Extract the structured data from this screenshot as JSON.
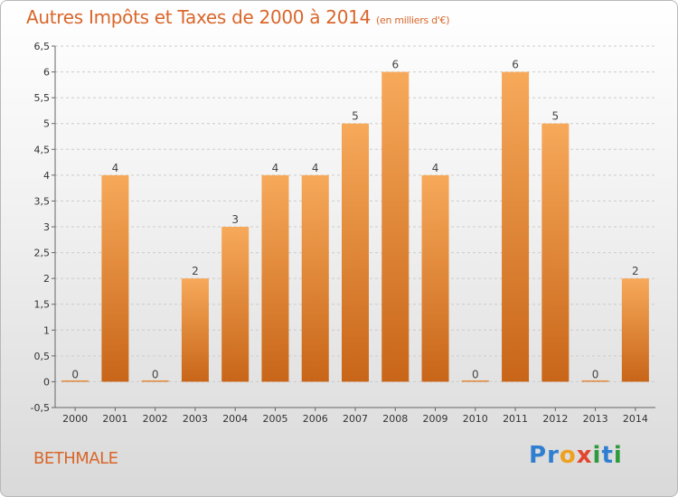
{
  "header": {
    "title": "Autres Impôts et Taxes de 2000 à 2014",
    "unit": "(en milliers d'€)"
  },
  "footer": {
    "commune": "BETHMALE",
    "logo_text": "Proxiti"
  },
  "colors": {
    "accent": "#d9662a",
    "bar_top": "#f7a95a",
    "bar_bottom": "#c86518",
    "grid": "#cccccc"
  },
  "chart_data": {
    "type": "bar",
    "categories": [
      "2000",
      "2001",
      "2002",
      "2003",
      "2004",
      "2005",
      "2006",
      "2007",
      "2008",
      "2009",
      "2010",
      "2011",
      "2012",
      "2013",
      "2014"
    ],
    "values": [
      0,
      4,
      0,
      2,
      3,
      4,
      4,
      5,
      6,
      4,
      0,
      6,
      5,
      0,
      2
    ],
    "value_labels": [
      "0",
      "4",
      "0",
      "2",
      "3",
      "4",
      "4",
      "5",
      "6",
      "4",
      "0",
      "6",
      "5",
      "0",
      "2"
    ],
    "title": "Autres Impôts et Taxes de 2000 à 2014",
    "ylim": [
      -0.5,
      6.5
    ],
    "yticks": [
      -0.5,
      0,
      0.5,
      1,
      1.5,
      2,
      2.5,
      3,
      3.5,
      4,
      4.5,
      5,
      5.5,
      6,
      6.5
    ],
    "ytick_labels": [
      "-0,5",
      "0",
      "0,5",
      "1",
      "1,5",
      "2",
      "2,5",
      "3",
      "3,5",
      "4",
      "4,5",
      "5",
      "5,5",
      "6",
      "6,5"
    ],
    "grid": true,
    "legend": "none"
  }
}
